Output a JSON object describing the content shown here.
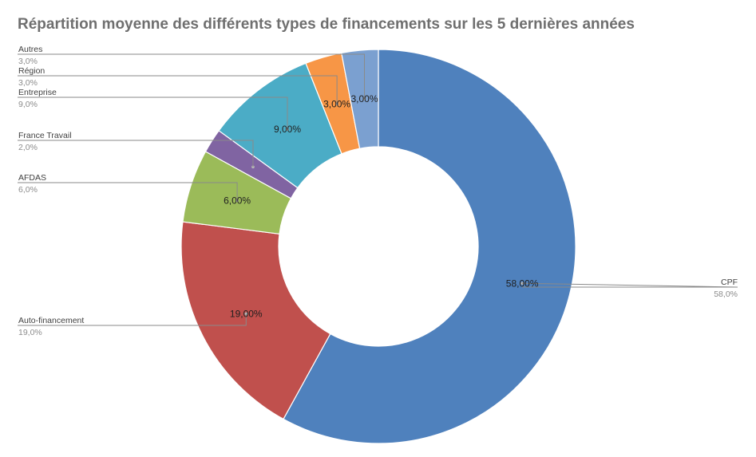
{
  "chart_data": {
    "type": "pie",
    "title": "Répartition moyenne des différents types de financements sur les 5 dernières années",
    "hole": true,
    "slices": [
      {
        "name": "CPF",
        "value": 58,
        "pct_label": "58,00%",
        "value_label": "58,0%",
        "color": "#4f81bd"
      },
      {
        "name": "Auto-financement",
        "value": 19,
        "pct_label": "19,00%",
        "value_label": "19,0%",
        "color": "#c0504d"
      },
      {
        "name": "AFDAS",
        "value": 6,
        "pct_label": "6,00%",
        "value_label": "6,0%",
        "color": "#9bbb59"
      },
      {
        "name": "France Travail",
        "value": 2,
        "pct_label": "",
        "value_label": "2,0%",
        "color": "#8064a2"
      },
      {
        "name": "Entreprise",
        "value": 9,
        "pct_label": "9,00%",
        "value_label": "9,0%",
        "color": "#4bacc6"
      },
      {
        "name": "Région",
        "value": 3,
        "pct_label": "3,00%",
        "value_label": "3,0%",
        "color": "#f79646"
      },
      {
        "name": "Autres",
        "value": 3,
        "pct_label": "3,00%",
        "value_label": "3,0%",
        "color": "#7ba0d0"
      }
    ]
  }
}
